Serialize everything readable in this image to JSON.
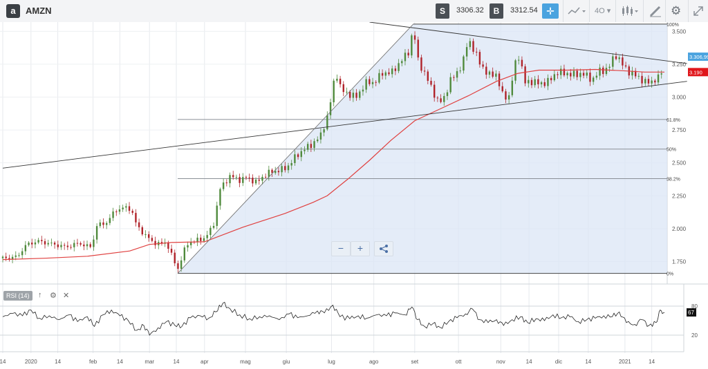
{
  "toolbar": {
    "logo": "a",
    "symbol": "AMZN",
    "sell_label": "S",
    "sell_price": "3306.32",
    "buy_label": "B",
    "buy_price": "3312.54",
    "crosshair_icon": "crosshair-icon",
    "chart_type_icon": "line-chart-icon",
    "timeframe": "4O",
    "candles_icon": "candlestick-icon",
    "draw_icon": "pencil-icon",
    "settings_icon": "gear-icon",
    "fullscreen_icon": "expand-icon"
  },
  "zoom": {
    "minus": "−",
    "plus": "+",
    "share": "share-icon"
  },
  "rsi": {
    "label": "RSI (14)",
    "last_value": "67",
    "level_high": "80",
    "level_low": "20",
    "icons": [
      "up-arrow-icon",
      "gear-icon",
      "close-icon"
    ]
  },
  "chart_data": {
    "type": "candlestick",
    "symbol": "AMZN",
    "y_ticks": [
      1750,
      2000,
      2250,
      2500,
      2750,
      3000,
      3250,
      3500
    ],
    "y_tick_labels": [
      "1.750",
      "2.000",
      "2.250",
      "2.500",
      "2.750",
      "3.000",
      "3.250",
      "3.500"
    ],
    "ylim": [
      1600,
      3570
    ],
    "x_tick_labels": [
      {
        "label": "14",
        "t": 0.0
      },
      {
        "label": "2020",
        "t": 2.0
      },
      {
        "label": "14",
        "t": 3.9
      },
      {
        "label": "feb",
        "t": 6.4
      },
      {
        "label": "14",
        "t": 8.3
      },
      {
        "label": "mar",
        "t": 10.4
      },
      {
        "label": "14",
        "t": 12.3
      },
      {
        "label": "apr",
        "t": 14.3
      },
      {
        "label": "mag",
        "t": 17.2
      },
      {
        "label": "giu",
        "t": 20.1
      },
      {
        "label": "lug",
        "t": 23.3
      },
      {
        "label": "ago",
        "t": 26.3
      },
      {
        "label": "set",
        "t": 29.2
      },
      {
        "label": "ott",
        "t": 32.3
      },
      {
        "label": "nov",
        "t": 35.3
      },
      {
        "label": "14",
        "t": 37.3
      },
      {
        "label": "dic",
        "t": 39.4
      },
      {
        "label": "14",
        "t": 41.5
      },
      {
        "label": "2021",
        "t": 44.1
      },
      {
        "label": "14",
        "t": 46.0
      }
    ],
    "close_path": [
      [
        0.0,
        1775
      ],
      [
        1.0,
        1785
      ],
      [
        1.7,
        1880
      ],
      [
        2.5,
        1905
      ],
      [
        3.4,
        1885
      ],
      [
        4.5,
        1860
      ],
      [
        5.4,
        1890
      ],
      [
        6.0,
        1865
      ],
      [
        6.4,
        1860
      ],
      [
        6.5,
        2020
      ],
      [
        7.3,
        2040
      ],
      [
        8.0,
        2140
      ],
      [
        8.6,
        2160
      ],
      [
        9.1,
        2150
      ],
      [
        9.5,
        2020
      ],
      [
        10.2,
        1940
      ],
      [
        10.6,
        1900
      ],
      [
        11.2,
        1880
      ],
      [
        11.6,
        1900
      ],
      [
        12.1,
        1760
      ],
      [
        12.4,
        1690
      ],
      [
        12.8,
        1820
      ],
      [
        13.2,
        1900
      ],
      [
        13.8,
        1910
      ],
      [
        14.3,
        1930
      ],
      [
        14.9,
        2010
      ],
      [
        15.4,
        2300
      ],
      [
        16.1,
        2400
      ],
      [
        16.8,
        2370
      ],
      [
        17.3,
        2390
      ],
      [
        18.0,
        2350
      ],
      [
        18.7,
        2420
      ],
      [
        19.4,
        2440
      ],
      [
        20.1,
        2460
      ],
      [
        20.7,
        2540
      ],
      [
        21.3,
        2600
      ],
      [
        21.9,
        2640
      ],
      [
        22.5,
        2700
      ],
      [
        23.1,
        2880
      ],
      [
        23.6,
        3200
      ],
      [
        24.0,
        3050
      ],
      [
        24.6,
        3020
      ],
      [
        25.1,
        3000
      ],
      [
        25.7,
        3110
      ],
      [
        26.3,
        3110
      ],
      [
        26.9,
        3180
      ],
      [
        27.6,
        3190
      ],
      [
        28.2,
        3270
      ],
      [
        28.8,
        3350
      ],
      [
        29.1,
        3530
      ],
      [
        29.4,
        3290
      ],
      [
        29.8,
        3200
      ],
      [
        30.4,
        3070
      ],
      [
        30.9,
        2950
      ],
      [
        31.3,
        3000
      ],
      [
        31.7,
        3120
      ],
      [
        32.2,
        3190
      ],
      [
        32.6,
        3250
      ],
      [
        33.0,
        3450
      ],
      [
        33.4,
        3350
      ],
      [
        33.9,
        3250
      ],
      [
        34.4,
        3160
      ],
      [
        34.9,
        3190
      ],
      [
        35.4,
        3020
      ],
      [
        35.9,
        3000
      ],
      [
        36.3,
        3250
      ],
      [
        36.6,
        3320
      ],
      [
        37.0,
        3110
      ],
      [
        37.5,
        3120
      ],
      [
        38.1,
        3100
      ],
      [
        38.7,
        3120
      ],
      [
        39.3,
        3190
      ],
      [
        39.9,
        3180
      ],
      [
        40.5,
        3170
      ],
      [
        41.1,
        3180
      ],
      [
        41.8,
        3130
      ],
      [
        42.3,
        3200
      ],
      [
        42.9,
        3210
      ],
      [
        43.4,
        3330
      ],
      [
        43.9,
        3250
      ],
      [
        44.5,
        3180
      ],
      [
        45.0,
        3160
      ],
      [
        45.5,
        3110
      ],
      [
        46.0,
        3120
      ],
      [
        46.6,
        3150
      ],
      [
        46.9,
        3307
      ]
    ],
    "moving_average_200": [
      [
        0.0,
        1765
      ],
      [
        3.0,
        1775
      ],
      [
        6.0,
        1790
      ],
      [
        9.0,
        1830
      ],
      [
        10.4,
        1880
      ],
      [
        12.0,
        1895
      ],
      [
        14.3,
        1900
      ],
      [
        17.0,
        2010
      ],
      [
        20.0,
        2115
      ],
      [
        22.0,
        2200
      ],
      [
        23.0,
        2250
      ],
      [
        24.5,
        2380
      ],
      [
        26.0,
        2520
      ],
      [
        27.5,
        2670
      ],
      [
        29.2,
        2820
      ],
      [
        31.0,
        2910
      ],
      [
        33.0,
        3010
      ],
      [
        35.0,
        3120
      ],
      [
        36.5,
        3180
      ],
      [
        38.0,
        3205
      ],
      [
        40.0,
        3205
      ],
      [
        42.0,
        3210
      ],
      [
        44.0,
        3200
      ],
      [
        45.5,
        3190
      ],
      [
        46.9,
        3190
      ]
    ],
    "last_price": 3306.99,
    "last_price_label": "3.306,99",
    "ma_label": "3.190",
    "fibonacci": {
      "low": 1660,
      "high": 3555,
      "levels": [
        {
          "label": "100%",
          "price": 3555
        },
        {
          "label": "61.8%",
          "price": 2830
        },
        {
          "label": "50%",
          "price": 2605
        },
        {
          "label": "38.2%",
          "price": 2380
        },
        {
          "label": "0%",
          "price": 1660
        }
      ]
    },
    "trendlines": [
      {
        "from": [
          0.0,
          2460
        ],
        "to": [
          48.5,
          3120
        ],
        "color": "#333333"
      },
      {
        "from": [
          26.0,
          3570
        ],
        "to": [
          48.5,
          3255
        ],
        "color": "#333333"
      },
      {
        "from": [
          12.4,
          1660
        ],
        "to": [
          29.1,
          3555
        ],
        "color": "#777777"
      }
    ],
    "rsi_path": [
      [
        0.0,
        58
      ],
      [
        0.7,
        65
      ],
      [
        1.4,
        60
      ],
      [
        2.0,
        72
      ],
      [
        2.6,
        55
      ],
      [
        3.3,
        60
      ],
      [
        4.0,
        52
      ],
      [
        4.7,
        62
      ],
      [
        5.3,
        48
      ],
      [
        6.0,
        58
      ],
      [
        6.5,
        38
      ],
      [
        7.1,
        62
      ],
      [
        7.7,
        72
      ],
      [
        8.3,
        60
      ],
      [
        8.9,
        50
      ],
      [
        9.5,
        30
      ],
      [
        10.0,
        40
      ],
      [
        10.4,
        20
      ],
      [
        11.0,
        35
      ],
      [
        11.6,
        48
      ],
      [
        12.2,
        40
      ],
      [
        12.7,
        38
      ],
      [
        13.3,
        56
      ],
      [
        14.0,
        60
      ],
      [
        14.6,
        55
      ],
      [
        15.1,
        68
      ],
      [
        15.6,
        86
      ],
      [
        16.1,
        75
      ],
      [
        16.8,
        62
      ],
      [
        17.5,
        54
      ],
      [
        18.2,
        58
      ],
      [
        18.9,
        60
      ],
      [
        19.6,
        52
      ],
      [
        20.3,
        64
      ],
      [
        20.9,
        56
      ],
      [
        21.6,
        60
      ],
      [
        22.3,
        70
      ],
      [
        22.8,
        66
      ],
      [
        23.4,
        82
      ],
      [
        23.9,
        58
      ],
      [
        24.6,
        54
      ],
      [
        25.2,
        60
      ],
      [
        25.8,
        55
      ],
      [
        26.5,
        62
      ],
      [
        27.2,
        60
      ],
      [
        27.8,
        66
      ],
      [
        28.5,
        62
      ],
      [
        29.0,
        78
      ],
      [
        29.4,
        52
      ],
      [
        29.9,
        38
      ],
      [
        30.5,
        44
      ],
      [
        31.0,
        36
      ],
      [
        31.6,
        48
      ],
      [
        32.2,
        56
      ],
      [
        32.8,
        64
      ],
      [
        33.3,
        74
      ],
      [
        33.8,
        52
      ],
      [
        34.4,
        46
      ],
      [
        35.0,
        52
      ],
      [
        35.5,
        40
      ],
      [
        36.1,
        52
      ],
      [
        36.7,
        58
      ],
      [
        37.2,
        46
      ],
      [
        37.8,
        54
      ],
      [
        38.4,
        50
      ],
      [
        39.0,
        62
      ],
      [
        39.6,
        56
      ],
      [
        40.2,
        58
      ],
      [
        40.8,
        48
      ],
      [
        41.4,
        52
      ],
      [
        42.0,
        55
      ],
      [
        42.6,
        60
      ],
      [
        43.2,
        58
      ],
      [
        43.7,
        68
      ],
      [
        44.2,
        46
      ],
      [
        44.8,
        42
      ],
      [
        45.3,
        52
      ],
      [
        45.8,
        40
      ],
      [
        46.3,
        46
      ],
      [
        46.6,
        72
      ],
      [
        46.9,
        67
      ]
    ],
    "rsi_ylim": [
      0,
      100
    ]
  }
}
